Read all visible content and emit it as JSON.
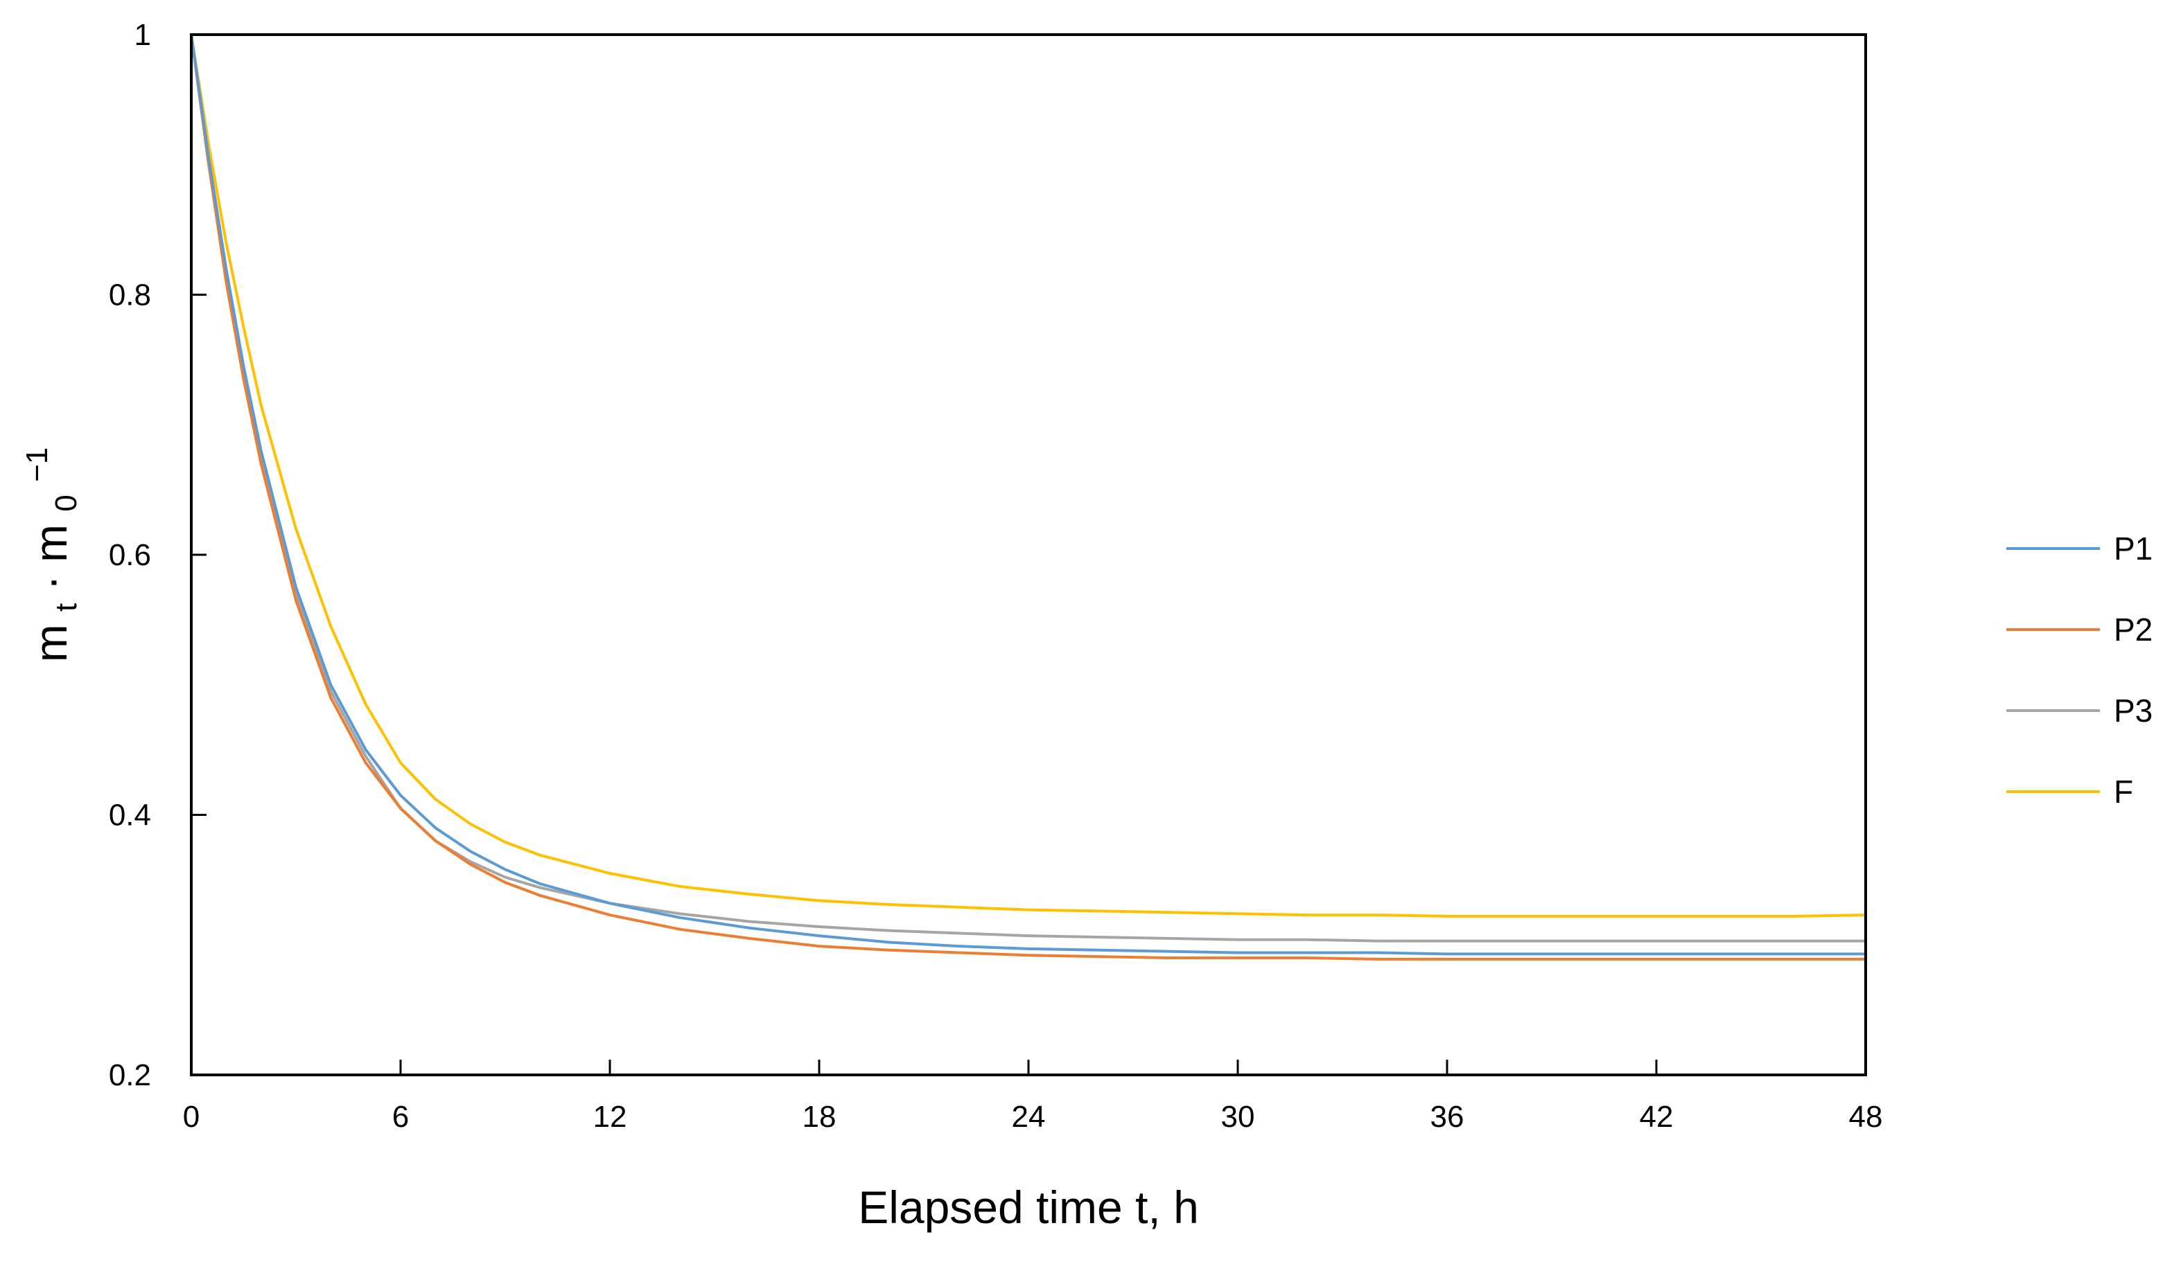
{
  "chart_data": {
    "type": "line",
    "title": "",
    "xlabel": "Elapsed time t, h",
    "ylabel": {
      "base1": "m",
      "sub1": "t",
      "dot": "·",
      "base2": "m",
      "sub2": "0",
      "sup": "−1"
    },
    "xlim": [
      0,
      48
    ],
    "ylim": [
      0.2,
      1.0
    ],
    "xticks": [
      {
        "value": 0,
        "label": "0"
      },
      {
        "value": 6,
        "label": "6"
      },
      {
        "value": 12,
        "label": "12"
      },
      {
        "value": 18,
        "label": "18"
      },
      {
        "value": 24,
        "label": "24"
      },
      {
        "value": 30,
        "label": "30"
      },
      {
        "value": 36,
        "label": "36"
      },
      {
        "value": 42,
        "label": "42"
      },
      {
        "value": 48,
        "label": "48"
      }
    ],
    "yticks": [
      {
        "value": 0.2,
        "label": "0.2"
      },
      {
        "value": 0.4,
        "label": "0.4"
      },
      {
        "value": 0.6,
        "label": "0.6"
      },
      {
        "value": 0.8,
        "label": "0.8"
      },
      {
        "value": 1.0,
        "label": "1"
      }
    ],
    "grid": false,
    "legend_position": "right",
    "series": [
      {
        "name": "P1",
        "color": "#5B9BD5",
        "x": [
          0,
          0.5,
          1,
          1.5,
          2,
          3,
          4,
          5,
          6,
          7,
          8,
          9,
          10,
          12,
          14,
          16,
          18,
          20,
          22,
          24,
          26,
          28,
          30,
          32,
          34,
          36,
          38,
          40,
          42,
          44,
          46,
          48
        ],
        "y": [
          1.0,
          0.905,
          0.82,
          0.745,
          0.68,
          0.575,
          0.5,
          0.45,
          0.415,
          0.39,
          0.372,
          0.358,
          0.347,
          0.332,
          0.321,
          0.313,
          0.307,
          0.302,
          0.299,
          0.297,
          0.296,
          0.295,
          0.294,
          0.294,
          0.294,
          0.293,
          0.293,
          0.293,
          0.293,
          0.293,
          0.293,
          0.293
        ]
      },
      {
        "name": "P2",
        "color": "#ED7D31",
        "x": [
          0,
          0.5,
          1,
          1.5,
          2,
          3,
          4,
          5,
          6,
          7,
          8,
          9,
          10,
          12,
          14,
          16,
          18,
          20,
          22,
          24,
          26,
          28,
          30,
          32,
          34,
          36,
          38,
          40,
          42,
          44,
          46,
          48
        ],
        "y": [
          1.0,
          0.9,
          0.81,
          0.735,
          0.67,
          0.565,
          0.49,
          0.44,
          0.405,
          0.38,
          0.362,
          0.348,
          0.338,
          0.323,
          0.312,
          0.305,
          0.299,
          0.296,
          0.294,
          0.292,
          0.291,
          0.29,
          0.29,
          0.29,
          0.289,
          0.289,
          0.289,
          0.289,
          0.289,
          0.289,
          0.289,
          0.289
        ]
      },
      {
        "name": "P3",
        "color": "#A5A5A5",
        "x": [
          0,
          0.5,
          1,
          1.5,
          2,
          3,
          4,
          5,
          6,
          7,
          8,
          9,
          10,
          12,
          14,
          16,
          18,
          20,
          22,
          24,
          26,
          28,
          30,
          32,
          34,
          36,
          38,
          40,
          42,
          44,
          46,
          48
        ],
        "y": [
          1.0,
          0.9,
          0.815,
          0.74,
          0.675,
          0.57,
          0.495,
          0.445,
          0.405,
          0.38,
          0.364,
          0.352,
          0.344,
          0.332,
          0.324,
          0.318,
          0.314,
          0.311,
          0.309,
          0.307,
          0.306,
          0.305,
          0.304,
          0.304,
          0.303,
          0.303,
          0.303,
          0.303,
          0.303,
          0.303,
          0.303,
          0.303
        ]
      },
      {
        "name": "F",
        "color": "#FFC000",
        "x": [
          0,
          0.5,
          1,
          1.5,
          2,
          3,
          4,
          5,
          6,
          7,
          8,
          9,
          10,
          12,
          14,
          16,
          18,
          20,
          22,
          24,
          26,
          28,
          30,
          32,
          34,
          36,
          38,
          40,
          42,
          44,
          46,
          48
        ],
        "y": [
          1.0,
          0.915,
          0.84,
          0.775,
          0.715,
          0.62,
          0.545,
          0.485,
          0.44,
          0.412,
          0.393,
          0.379,
          0.369,
          0.355,
          0.345,
          0.339,
          0.334,
          0.331,
          0.329,
          0.327,
          0.326,
          0.325,
          0.324,
          0.323,
          0.323,
          0.322,
          0.322,
          0.322,
          0.322,
          0.322,
          0.322,
          0.323
        ]
      }
    ]
  }
}
